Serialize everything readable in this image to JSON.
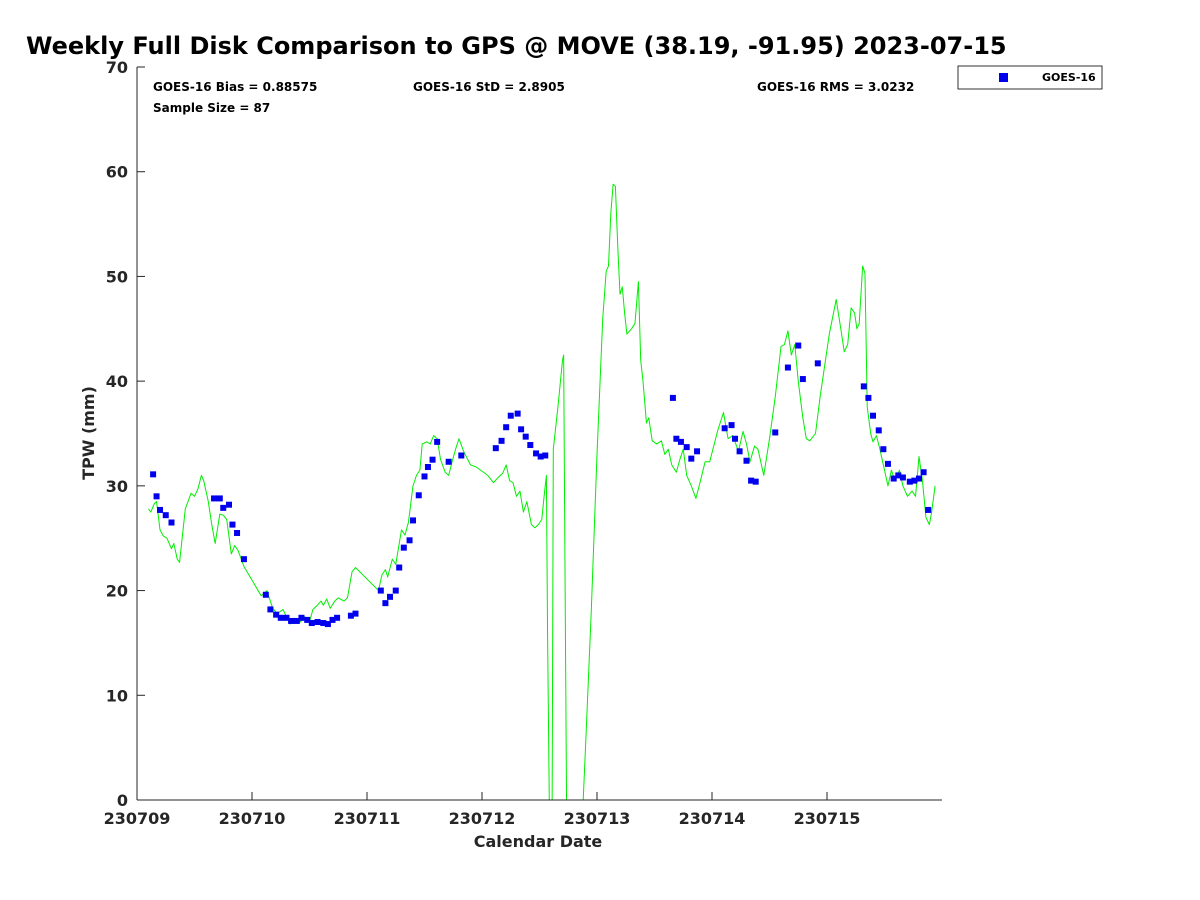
{
  "chart_data": {
    "type": "scatter",
    "title": "Weekly Full Disk Comparison to GPS @ MOVE (38.19, -91.95) 2023-07-15",
    "xlabel": "Calendar Date",
    "ylabel": "TPW (mm)",
    "xlim": [
      230709,
      230716
    ],
    "ylim": [
      0,
      70
    ],
    "x_ticks": [
      230709,
      230710,
      230711,
      230712,
      230713,
      230714,
      230715
    ],
    "y_ticks": [
      0,
      10,
      20,
      30,
      40,
      50,
      60,
      70
    ],
    "grid": false,
    "legend_position": "outside-top-right",
    "stats": {
      "bias": "GOES-16 Bias = 0.88575",
      "std": "GOES-16 StD = 2.8905",
      "rms": "GOES-16 RMS = 3.0232",
      "sample": "Sample Size = 87"
    },
    "series": [
      {
        "name": "GOES-16",
        "kind": "scatter",
        "color": "#0000ee",
        "points": [
          [
            230709.14,
            31.1
          ],
          [
            230709.17,
            29.0
          ],
          [
            230709.2,
            27.7
          ],
          [
            230709.25,
            27.2
          ],
          [
            230709.3,
            26.5
          ],
          [
            230709.67,
            28.8
          ],
          [
            230709.72,
            28.8
          ],
          [
            230709.75,
            27.9
          ],
          [
            230709.8,
            28.2
          ],
          [
            230709.83,
            26.3
          ],
          [
            230709.87,
            25.5
          ],
          [
            230709.93,
            23.0
          ],
          [
            230710.12,
            19.6
          ],
          [
            230710.16,
            18.2
          ],
          [
            230710.21,
            17.7
          ],
          [
            230710.25,
            17.4
          ],
          [
            230710.3,
            17.4
          ],
          [
            230710.34,
            17.1
          ],
          [
            230710.39,
            17.1
          ],
          [
            230710.43,
            17.4
          ],
          [
            230710.48,
            17.2
          ],
          [
            230710.52,
            16.9
          ],
          [
            230710.57,
            17.0
          ],
          [
            230710.62,
            16.9
          ],
          [
            230710.66,
            16.8
          ],
          [
            230710.7,
            17.2
          ],
          [
            230710.74,
            17.4
          ],
          [
            230710.86,
            17.6
          ],
          [
            230710.9,
            17.8
          ],
          [
            230711.12,
            20.0
          ],
          [
            230711.16,
            18.8
          ],
          [
            230711.2,
            19.4
          ],
          [
            230711.25,
            20.0
          ],
          [
            230711.28,
            22.2
          ],
          [
            230711.32,
            24.1
          ],
          [
            230711.37,
            24.8
          ],
          [
            230711.4,
            26.7
          ],
          [
            230711.45,
            29.1
          ],
          [
            230711.5,
            30.9
          ],
          [
            230711.53,
            31.8
          ],
          [
            230711.57,
            32.5
          ],
          [
            230711.61,
            34.2
          ],
          [
            230711.71,
            32.3
          ],
          [
            230711.82,
            32.9
          ],
          [
            230712.12,
            33.6
          ],
          [
            230712.17,
            34.3
          ],
          [
            230712.21,
            35.6
          ],
          [
            230712.25,
            36.7
          ],
          [
            230712.31,
            36.9
          ],
          [
            230712.34,
            35.4
          ],
          [
            230712.38,
            34.7
          ],
          [
            230712.42,
            33.9
          ],
          [
            230712.47,
            33.1
          ],
          [
            230712.51,
            32.8
          ],
          [
            230712.55,
            32.9
          ],
          [
            230713.66,
            38.4
          ],
          [
            230713.69,
            34.5
          ],
          [
            230713.73,
            34.2
          ],
          [
            230713.78,
            33.7
          ],
          [
            230713.82,
            32.6
          ],
          [
            230713.87,
            33.3
          ],
          [
            230714.11,
            35.5
          ],
          [
            230714.17,
            35.8
          ],
          [
            230714.2,
            34.5
          ],
          [
            230714.24,
            33.3
          ],
          [
            230714.3,
            32.4
          ],
          [
            230714.34,
            30.5
          ],
          [
            230714.38,
            30.4
          ],
          [
            230714.55,
            35.1
          ],
          [
            230714.66,
            41.3
          ],
          [
            230714.75,
            43.4
          ],
          [
            230714.79,
            40.2
          ],
          [
            230714.92,
            41.7
          ],
          [
            230715.32,
            39.5
          ],
          [
            230715.36,
            38.4
          ],
          [
            230715.4,
            36.7
          ],
          [
            230715.45,
            35.3
          ],
          [
            230715.49,
            33.5
          ],
          [
            230715.53,
            32.1
          ],
          [
            230715.58,
            30.7
          ],
          [
            230715.62,
            31.0
          ],
          [
            230715.66,
            30.8
          ],
          [
            230715.72,
            30.4
          ],
          [
            230715.76,
            30.5
          ],
          [
            230715.8,
            30.7
          ],
          [
            230715.84,
            31.3
          ],
          [
            230715.88,
            27.7
          ]
        ]
      },
      {
        "name": "",
        "kind": "line",
        "color": "#00ee00",
        "points": [
          [
            230709.1,
            27.8
          ],
          [
            230709.12,
            27.5
          ],
          [
            230709.15,
            28.3
          ],
          [
            230709.17,
            28.5
          ],
          [
            230709.2,
            25.8
          ],
          [
            230709.23,
            25.2
          ],
          [
            230709.26,
            25.0
          ],
          [
            230709.3,
            24.0
          ],
          [
            230709.32,
            24.5
          ],
          [
            230709.35,
            23.0
          ],
          [
            230709.37,
            22.7
          ],
          [
            230709.42,
            27.8
          ],
          [
            230709.47,
            29.3
          ],
          [
            230709.5,
            29.0
          ],
          [
            230709.53,
            29.7
          ],
          [
            230709.56,
            31.0
          ],
          [
            230709.58,
            30.5
          ],
          [
            230709.62,
            28.5
          ],
          [
            230709.65,
            26.3
          ],
          [
            230709.68,
            24.5
          ],
          [
            230709.72,
            27.3
          ],
          [
            230709.75,
            27.2
          ],
          [
            230709.78,
            26.8
          ],
          [
            230709.82,
            23.5
          ],
          [
            230709.85,
            24.3
          ],
          [
            230709.88,
            23.8
          ],
          [
            230709.93,
            22.3
          ],
          [
            230710.0,
            21.0
          ],
          [
            230710.08,
            19.5
          ],
          [
            230710.13,
            20.0
          ],
          [
            230710.18,
            18.3
          ],
          [
            230710.22,
            17.8
          ],
          [
            230710.27,
            18.2
          ],
          [
            230710.3,
            17.5
          ],
          [
            230710.33,
            16.8
          ],
          [
            230710.37,
            17.3
          ],
          [
            230710.42,
            17.0
          ],
          [
            230710.46,
            17.5
          ],
          [
            230710.5,
            17.0
          ],
          [
            230710.53,
            18.2
          ],
          [
            230710.56,
            18.5
          ],
          [
            230710.6,
            19.0
          ],
          [
            230710.62,
            18.6
          ],
          [
            230710.65,
            19.2
          ],
          [
            230710.68,
            18.3
          ],
          [
            230710.72,
            19.0
          ],
          [
            230710.75,
            19.3
          ],
          [
            230710.8,
            19.0
          ],
          [
            230710.83,
            19.3
          ],
          [
            230710.87,
            21.8
          ],
          [
            230710.9,
            22.2
          ],
          [
            230711.1,
            20.0
          ],
          [
            230711.13,
            21.5
          ],
          [
            230711.16,
            22.0
          ],
          [
            230711.18,
            21.3
          ],
          [
            230711.22,
            23.0
          ],
          [
            230711.25,
            22.5
          ],
          [
            230711.3,
            25.8
          ],
          [
            230711.33,
            25.3
          ],
          [
            230711.36,
            26.5
          ],
          [
            230711.4,
            30.0
          ],
          [
            230711.43,
            31.0
          ],
          [
            230711.46,
            31.5
          ],
          [
            230711.48,
            34.0
          ],
          [
            230711.52,
            34.2
          ],
          [
            230711.55,
            34.0
          ],
          [
            230711.58,
            34.8
          ],
          [
            230711.61,
            34.5
          ],
          [
            230711.64,
            32.5
          ],
          [
            230711.68,
            31.3
          ],
          [
            230711.71,
            31.0
          ],
          [
            230711.74,
            32.3
          ],
          [
            230711.77,
            33.5
          ],
          [
            230711.8,
            34.5
          ],
          [
            230711.84,
            33.3
          ],
          [
            230711.9,
            32.0
          ],
          [
            230711.95,
            31.8
          ],
          [
            230712.05,
            31.0
          ],
          [
            230712.1,
            30.3
          ],
          [
            230712.14,
            30.8
          ],
          [
            230712.18,
            31.2
          ],
          [
            230712.21,
            32.0
          ],
          [
            230712.24,
            30.5
          ],
          [
            230712.27,
            30.3
          ],
          [
            230712.3,
            29.0
          ],
          [
            230712.33,
            29.5
          ],
          [
            230712.36,
            27.5
          ],
          [
            230712.39,
            28.5
          ],
          [
            230712.43,
            26.3
          ],
          [
            230712.46,
            26.0
          ],
          [
            230712.49,
            26.3
          ],
          [
            230712.52,
            26.8
          ],
          [
            230712.54,
            29.0
          ],
          [
            230712.56,
            31.0
          ],
          [
            230712.57,
            16.0
          ],
          [
            230712.585,
            0.0
          ],
          [
            230712.61,
            0.0
          ],
          [
            230712.62,
            33.5
          ],
          [
            230712.66,
            37.5
          ],
          [
            230712.7,
            42.0
          ],
          [
            230712.71,
            42.5
          ],
          [
            230712.72,
            25.0
          ],
          [
            230712.735,
            0.0
          ],
          [
            230712.88,
            0.0
          ],
          [
            230712.9,
            5.0
          ],
          [
            230712.95,
            18.0
          ],
          [
            230713.0,
            33.0
          ],
          [
            230713.05,
            46.0
          ],
          [
            230713.08,
            50.5
          ],
          [
            230713.1,
            51.0
          ],
          [
            230713.12,
            56.0
          ],
          [
            230713.14,
            58.8
          ],
          [
            230713.16,
            58.6
          ],
          [
            230713.18,
            53.0
          ],
          [
            230713.2,
            48.3
          ],
          [
            230713.22,
            49.0
          ],
          [
            230713.24,
            46.5
          ],
          [
            230713.26,
            44.5
          ],
          [
            230713.3,
            45.0
          ],
          [
            230713.33,
            45.5
          ],
          [
            230713.36,
            49.5
          ],
          [
            230713.38,
            42.0
          ],
          [
            230713.4,
            40.0
          ],
          [
            230713.43,
            36.0
          ],
          [
            230713.45,
            36.5
          ],
          [
            230713.48,
            34.3
          ],
          [
            230713.52,
            34.0
          ],
          [
            230713.56,
            34.3
          ],
          [
            230713.59,
            33.0
          ],
          [
            230713.62,
            33.5
          ],
          [
            230713.65,
            32.0
          ],
          [
            230713.69,
            31.3
          ],
          [
            230713.72,
            32.5
          ],
          [
            230713.75,
            33.5
          ],
          [
            230713.78,
            31.0
          ],
          [
            230713.82,
            30.0
          ],
          [
            230713.86,
            28.8
          ],
          [
            230713.9,
            30.5
          ],
          [
            230713.94,
            32.3
          ],
          [
            230713.98,
            32.3
          ],
          [
            230714.05,
            35.3
          ],
          [
            230714.1,
            37.0
          ],
          [
            230714.14,
            34.5
          ],
          [
            230714.18,
            34.8
          ],
          [
            230714.23,
            33.3
          ],
          [
            230714.27,
            35.2
          ],
          [
            230714.3,
            34.0
          ],
          [
            230714.33,
            32.3
          ],
          [
            230714.37,
            33.8
          ],
          [
            230714.4,
            33.5
          ],
          [
            230714.45,
            31.0
          ],
          [
            230714.5,
            34.5
          ],
          [
            230714.55,
            38.5
          ],
          [
            230714.6,
            43.3
          ],
          [
            230714.63,
            43.5
          ],
          [
            230714.66,
            44.8
          ],
          [
            230714.69,
            42.5
          ],
          [
            230714.72,
            43.5
          ],
          [
            230714.75,
            40.0
          ],
          [
            230714.79,
            36.5
          ],
          [
            230714.82,
            34.5
          ],
          [
            230714.85,
            34.3
          ],
          [
            230714.9,
            35.0
          ],
          [
            230714.94,
            38.5
          ],
          [
            230714.98,
            41.5
          ],
          [
            230715.02,
            44.5
          ],
          [
            230715.08,
            47.8
          ],
          [
            230715.12,
            45.0
          ],
          [
            230715.15,
            42.8
          ],
          [
            230715.18,
            43.5
          ],
          [
            230715.21,
            47.0
          ],
          [
            230715.24,
            46.5
          ],
          [
            230715.26,
            45.0
          ],
          [
            230715.28,
            45.5
          ],
          [
            230715.31,
            51.0
          ],
          [
            230715.33,
            50.3
          ],
          [
            230715.35,
            37.5
          ],
          [
            230715.38,
            35.0
          ],
          [
            230715.4,
            34.2
          ],
          [
            230715.43,
            34.8
          ],
          [
            230715.46,
            33.5
          ],
          [
            230715.5,
            31.5
          ],
          [
            230715.53,
            30.0
          ],
          [
            230715.56,
            31.5
          ],
          [
            230715.59,
            30.5
          ],
          [
            230715.63,
            31.5
          ],
          [
            230715.66,
            30.0
          ],
          [
            230715.7,
            29.0
          ],
          [
            230715.74,
            29.5
          ],
          [
            230715.77,
            29.0
          ],
          [
            230715.8,
            32.8
          ],
          [
            230715.83,
            30.5
          ],
          [
            230715.86,
            27.0
          ],
          [
            230715.89,
            26.3
          ],
          [
            230715.91,
            27.5
          ],
          [
            230715.94,
            30.0
          ]
        ]
      }
    ]
  }
}
